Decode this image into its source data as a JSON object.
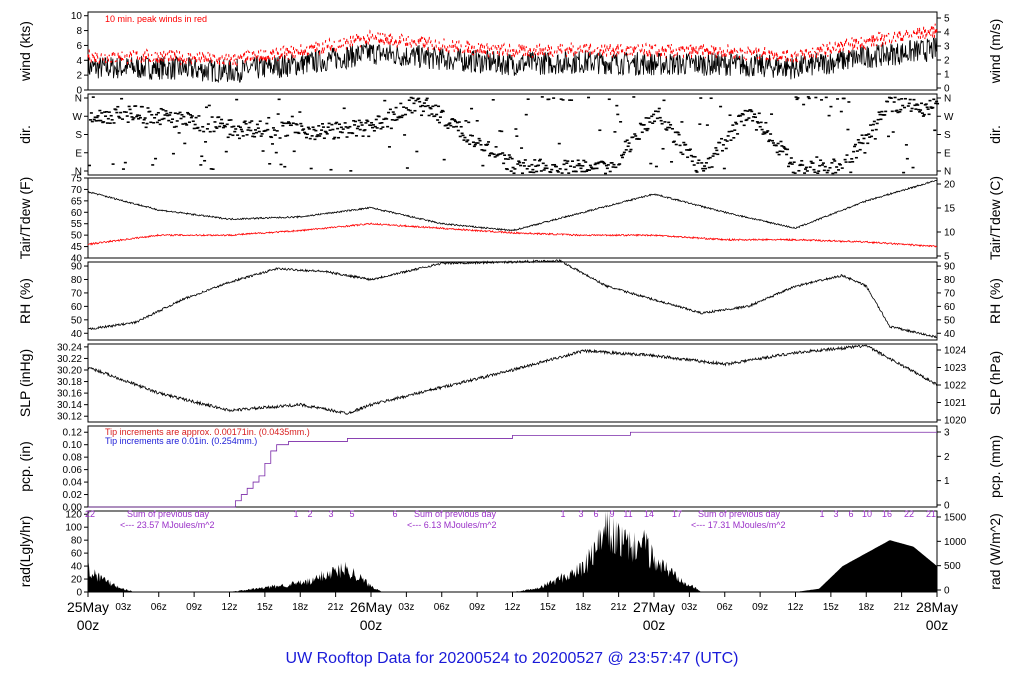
{
  "title": "UW Rooftop Data for 20200524  to  20200527 @ 23:57:47  (UTC)",
  "chart_data": [
    {
      "type": "line",
      "panel": "wind",
      "ylabel_left": "wind (kts)",
      "ylabel_right": "wind (m/s)",
      "ylim": [
        0,
        10.5
      ],
      "yticks_left": [
        "0",
        "2",
        "4",
        "6",
        "8",
        "10"
      ],
      "yticks_right": [
        "0",
        "1",
        "2",
        "3",
        "4",
        "5"
      ],
      "annotation": "10 min. peak winds in red",
      "hours": [
        0,
        6,
        12,
        18,
        24,
        30,
        36,
        42,
        48,
        54,
        60,
        66,
        72
      ],
      "series": [
        {
          "color": "#000000",
          "values": [
            3.0,
            3.0,
            2.5,
            3.5,
            5.0,
            4.2,
            3.5,
            3.8,
            3.5,
            3.5,
            3.0,
            4.5,
            5.5
          ]
        },
        {
          "color": "#ff0000",
          "values": [
            4.5,
            4.5,
            4.0,
            5.2,
            7.0,
            6.0,
            5.2,
            5.5,
            5.2,
            5.2,
            4.6,
            6.5,
            8.0
          ]
        }
      ]
    },
    {
      "type": "scatter",
      "panel": "dir",
      "ylabel_left": "dir.",
      "ylabel_right": "dir.",
      "yticks_left": [
        "N",
        "W",
        "S",
        "E",
        "N"
      ],
      "yticks_right": [
        "N",
        "W",
        "S",
        "E",
        "N"
      ],
      "hours": [
        0,
        4,
        8,
        12,
        16,
        20,
        24,
        28,
        36,
        44,
        48,
        52,
        56,
        60,
        64,
        68,
        72
      ],
      "values": [
        270,
        280,
        250,
        220,
        205,
        200,
        215,
        340,
        30,
        20,
        290,
        10,
        300,
        20,
        30,
        330,
        300
      ]
    },
    {
      "type": "line",
      "panel": "temp",
      "ylabel_left": "Tair/Tdew (F)",
      "ylabel_right": "Tair/Tdew (C)",
      "ylim": [
        40,
        75
      ],
      "yticks_left": [
        "40",
        "45",
        "50",
        "55",
        "60",
        "65",
        "70",
        "75"
      ],
      "yticks_right": [
        "5",
        "10",
        "15",
        "20"
      ],
      "hours": [
        0,
        6,
        12,
        18,
        24,
        30,
        36,
        42,
        48,
        54,
        60,
        66,
        72
      ],
      "series": [
        {
          "name": "Tair",
          "color": "#000000",
          "values": [
            69,
            61,
            57,
            58,
            62,
            55,
            52,
            60,
            68,
            60,
            53,
            65,
            74
          ]
        },
        {
          "name": "Tdew",
          "color": "#ff0000",
          "values": [
            46,
            50,
            50,
            52,
            55,
            53,
            51,
            50,
            50,
            48,
            48,
            47,
            45
          ]
        }
      ]
    },
    {
      "type": "line",
      "panel": "rh",
      "ylabel_left": "RH (%)",
      "ylabel_right": "RH (%)",
      "ylim": [
        35,
        93
      ],
      "yticks_left": [
        "40",
        "50",
        "60",
        "70",
        "80",
        "90"
      ],
      "yticks_right": [
        "40",
        "50",
        "60",
        "70",
        "80",
        "90"
      ],
      "hours": [
        0,
        4,
        8,
        12,
        16,
        20,
        24,
        30,
        36,
        40,
        44,
        48,
        52,
        56,
        60,
        64,
        66,
        68,
        72
      ],
      "series": [
        {
          "color": "#000000",
          "values": [
            43,
            48,
            65,
            78,
            88,
            86,
            80,
            92,
            93,
            94,
            75,
            65,
            55,
            60,
            75,
            83,
            75,
            45,
            37
          ]
        }
      ]
    },
    {
      "type": "line",
      "panel": "slp",
      "ylabel_left": "SLP (inHg)",
      "ylabel_right": "SLP (hPa)",
      "ylim": [
        30.11,
        30.245
      ],
      "yticks_left": [
        "30.12",
        "30.14",
        "30.16",
        "30.18",
        "30.20",
        "30.22",
        "30.24"
      ],
      "yticks_right": [
        "1020",
        "1021",
        "1022",
        "1023",
        "1024"
      ],
      "hours": [
        0,
        6,
        12,
        18,
        22,
        24,
        30,
        36,
        42,
        48,
        54,
        60,
        66,
        72
      ],
      "series": [
        {
          "color": "#000000",
          "values": [
            30.205,
            30.16,
            30.13,
            30.14,
            30.125,
            30.14,
            30.17,
            30.2,
            30.233,
            30.225,
            30.21,
            30.23,
            30.242,
            30.175
          ]
        }
      ]
    },
    {
      "type": "line",
      "panel": "pcp",
      "ylabel_left": "pcp. (in)",
      "ylabel_right": "pcp. (mm)",
      "ylim": [
        0,
        0.13
      ],
      "yticks_left": [
        "0.00",
        "0.02",
        "0.04",
        "0.06",
        "0.08",
        "0.10",
        "0.12"
      ],
      "yticks_right": [
        "0",
        "1",
        "2",
        "3"
      ],
      "annotations": [
        {
          "text": "Tip increments are approx. 0.00171in. (0.0435mm.)",
          "color": "#d82020"
        },
        {
          "text": "Tip increments are 0.01in. (0.254mm.)",
          "color": "#2020d8"
        }
      ],
      "hours": [
        0,
        12,
        12.5,
        13,
        13.5,
        14,
        14.5,
        15,
        15.5,
        16,
        17,
        20,
        22,
        36,
        46,
        72
      ],
      "series": [
        {
          "color": "#7a28a8",
          "values": [
            0,
            0,
            0.01,
            0.02,
            0.03,
            0.04,
            0.05,
            0.07,
            0.09,
            0.1,
            0.105,
            0.105,
            0.11,
            0.115,
            0.12,
            0.12
          ]
        }
      ]
    },
    {
      "type": "area",
      "panel": "rad",
      "ylabel_left": "rad(Lgly/hr)",
      "ylabel_right": "rad (W/m^2)",
      "ylim": [
        0,
        125
      ],
      "yticks_left": [
        "0",
        "20",
        "40",
        "60",
        "80",
        "100",
        "120"
      ],
      "yticks_right": [
        "0",
        "500",
        "1000",
        "1500"
      ],
      "hours": [
        0,
        1,
        3,
        4,
        12,
        16,
        19,
        20,
        22,
        24,
        25,
        36,
        38,
        42,
        43,
        44,
        46,
        47,
        48,
        49,
        52,
        60,
        62,
        64,
        68,
        70,
        72
      ],
      "values": [
        40,
        25,
        5,
        0,
        0,
        10,
        18,
        30,
        40,
        10,
        0,
        0,
        5,
        40,
        70,
        105,
        75,
        85,
        55,
        40,
        0,
        0,
        5,
        40,
        80,
        70,
        40
      ],
      "annotations": [
        {
          "text": "Sum of previous day",
          "color": "#9a30c8"
        },
        {
          "text": "<--- 23.57 MJoules/m^2",
          "color": "#9a30c8"
        },
        {
          "text": "Sum of previous day",
          "color": "#9a30c8"
        },
        {
          "text": "<--- 6.13 MJoules/m^2",
          "color": "#9a30c8"
        },
        {
          "text": "Sum of previous day",
          "color": "#9a30c8"
        },
        {
          "text": "<--- 17.31 MJoules/m^2",
          "color": "#9a30c8"
        }
      ],
      "hour_marks_day1": [
        "22",
        "1",
        "2",
        "3",
        "5",
        "6"
      ],
      "hour_marks_day2": [
        "1",
        "3",
        "6",
        "9",
        "11",
        "14",
        "17"
      ],
      "hour_marks_day3": [
        "1",
        "3",
        "6",
        "10",
        "16",
        "22",
        "21"
      ]
    }
  ],
  "xaxis": {
    "minor_ticks": [
      "03z",
      "06z",
      "09z",
      "12z",
      "15z",
      "18z",
      "21z",
      "03z",
      "06z",
      "09z",
      "12z",
      "15z",
      "18z",
      "21z",
      "03z",
      "06z",
      "09z",
      "12z",
      "15z",
      "18z",
      "21z"
    ],
    "day_labels": [
      {
        "date": "25May",
        "hour": "00z"
      },
      {
        "date": "26May",
        "hour": "00z"
      },
      {
        "date": "27May",
        "hour": "00z"
      },
      {
        "date": "28May",
        "hour": "00z"
      }
    ]
  }
}
